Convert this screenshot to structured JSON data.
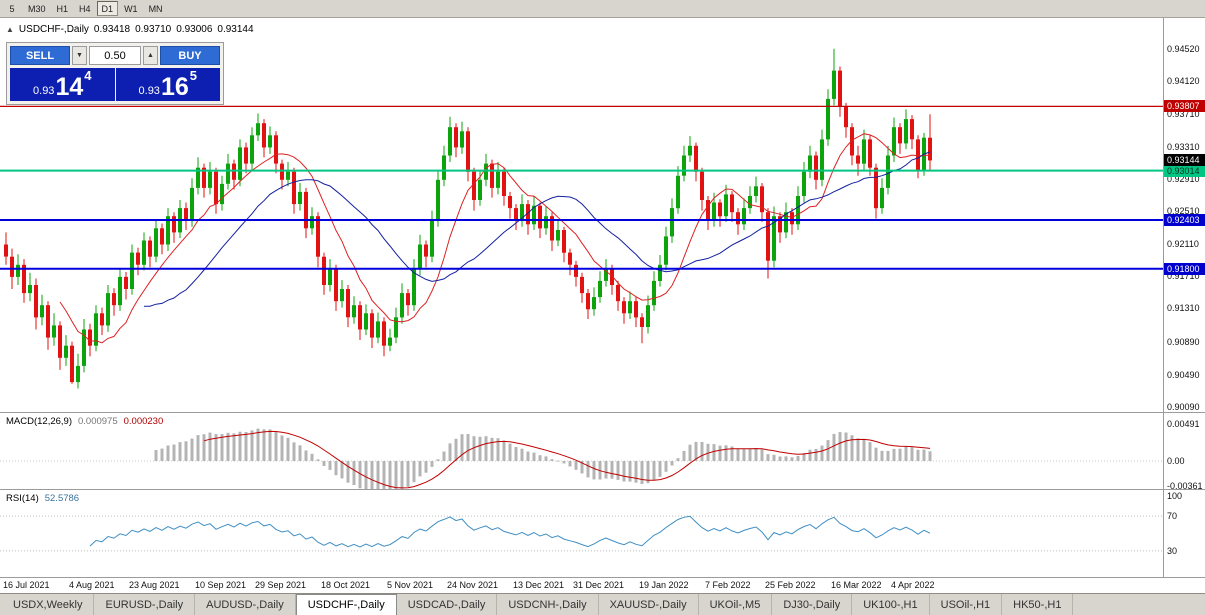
{
  "toolbar": {
    "timeframes": [
      "5",
      "M30",
      "H1",
      "H4",
      "D1",
      "W1",
      "MN"
    ],
    "active": "D1"
  },
  "header": {
    "symbol_period": "USDCHF-,Daily",
    "open": "0.93418",
    "high": "0.93710",
    "low": "0.93006",
    "close": "0.93144"
  },
  "icons": {
    "panel_toggle": "▲",
    "spin_up": "▲",
    "spin_down": "▼"
  },
  "trade_panel": {
    "sell_label": "SELL",
    "buy_label": "BUY",
    "lot_size": "0.50",
    "sell_price_prefix": "0.93",
    "sell_price_main": "14",
    "sell_price_pip": "4",
    "buy_price_prefix": "0.93",
    "buy_price_main": "16",
    "buy_price_pip": "5"
  },
  "tabs": {
    "items": [
      "USDX,Weekly",
      "EURUSD-,Daily",
      "AUDUSD-,Daily",
      "USDCHF-,Daily",
      "USDCAD-,Daily",
      "USDCNH-,Daily",
      "XAUUSD-,Daily",
      "UKOil-,M5",
      "DJ30-,Daily",
      "UK100-,H1",
      "USOil-,H1",
      "HK50-,H1"
    ],
    "active": "USDCHF-,Daily"
  },
  "chart_data": {
    "type": "candlestick",
    "symbol": "USDCHF-",
    "timeframe": "Daily",
    "price_unit": "price = value / 10000",
    "colors": {
      "up": "#0ca30c",
      "down": "#e31212"
    },
    "candles": [
      [
        9210,
        9225,
        9185,
        9195
      ],
      [
        9195,
        9205,
        9155,
        9170
      ],
      [
        9170,
        9198,
        9160,
        9185
      ],
      [
        9185,
        9192,
        9138,
        9150
      ],
      [
        9150,
        9175,
        9140,
        9160
      ],
      [
        9160,
        9168,
        9105,
        9120
      ],
      [
        9120,
        9148,
        9110,
        9135
      ],
      [
        9135,
        9140,
        9080,
        9095
      ],
      [
        9095,
        9125,
        9085,
        9110
      ],
      [
        9110,
        9115,
        9055,
        9070
      ],
      [
        9070,
        9098,
        9060,
        9085
      ],
      [
        9085,
        9090,
        9038,
        9040
      ],
      [
        9040,
        9075,
        9032,
        9060
      ],
      [
        9060,
        9118,
        9052,
        9105
      ],
      [
        9105,
        9112,
        9072,
        9085
      ],
      [
        9085,
        9135,
        9078,
        9125
      ],
      [
        9125,
        9132,
        9098,
        9110
      ],
      [
        9110,
        9160,
        9102,
        9150
      ],
      [
        9150,
        9156,
        9122,
        9135
      ],
      [
        9135,
        9180,
        9128,
        9170
      ],
      [
        9170,
        9176,
        9142,
        9155
      ],
      [
        9155,
        9210,
        9148,
        9200
      ],
      [
        9200,
        9206,
        9172,
        9185
      ],
      [
        9185,
        9225,
        9178,
        9215
      ],
      [
        9215,
        9220,
        9182,
        9195
      ],
      [
        9195,
        9240,
        9188,
        9230
      ],
      [
        9230,
        9236,
        9198,
        9210
      ],
      [
        9210,
        9255,
        9202,
        9245
      ],
      [
        9245,
        9250,
        9212,
        9225
      ],
      [
        9225,
        9265,
        9218,
        9255
      ],
      [
        9255,
        9262,
        9228,
        9240
      ],
      [
        9240,
        9292,
        9232,
        9280
      ],
      [
        9280,
        9318,
        9272,
        9305
      ],
      [
        9305,
        9310,
        9268,
        9280
      ],
      [
        9280,
        9312,
        9272,
        9300
      ],
      [
        9300,
        9305,
        9248,
        9260
      ],
      [
        9260,
        9295,
        9252,
        9285
      ],
      [
        9285,
        9322,
        9278,
        9310
      ],
      [
        9310,
        9315,
        9278,
        9290
      ],
      [
        9290,
        9340,
        9282,
        9330
      ],
      [
        9330,
        9336,
        9298,
        9310
      ],
      [
        9310,
        9355,
        9302,
        9345
      ],
      [
        9345,
        9372,
        9338,
        9360
      ],
      [
        9360,
        9365,
        9318,
        9330
      ],
      [
        9330,
        9356,
        9322,
        9345
      ],
      [
        9345,
        9350,
        9298,
        9310
      ],
      [
        9310,
        9315,
        9278,
        9290
      ],
      [
        9290,
        9312,
        9282,
        9300
      ],
      [
        9300,
        9305,
        9248,
        9260
      ],
      [
        9260,
        9286,
        9252,
        9275
      ],
      [
        9275,
        9280,
        9218,
        9230
      ],
      [
        9230,
        9256,
        9222,
        9245
      ],
      [
        9245,
        9250,
        9182,
        9195
      ],
      [
        9195,
        9200,
        9148,
        9160
      ],
      [
        9160,
        9192,
        9152,
        9180
      ],
      [
        9180,
        9185,
        9128,
        9140
      ],
      [
        9140,
        9166,
        9132,
        9155
      ],
      [
        9155,
        9160,
        9108,
        9120
      ],
      [
        9120,
        9146,
        9112,
        9135
      ],
      [
        9135,
        9140,
        9092,
        9105
      ],
      [
        9105,
        9136,
        9098,
        9125
      ],
      [
        9125,
        9130,
        9082,
        9095
      ],
      [
        9095,
        9126,
        9088,
        9115
      ],
      [
        9115,
        9120,
        9072,
        9085
      ],
      [
        9085,
        9106,
        9078,
        9095
      ],
      [
        9095,
        9132,
        9088,
        9120
      ],
      [
        9120,
        9162,
        9112,
        9150
      ],
      [
        9150,
        9155,
        9122,
        9135
      ],
      [
        9135,
        9192,
        9128,
        9180
      ],
      [
        9180,
        9222,
        9172,
        9210
      ],
      [
        9210,
        9215,
        9182,
        9195
      ],
      [
        9195,
        9252,
        9188,
        9240
      ],
      [
        9240,
        9302,
        9232,
        9290
      ],
      [
        9290,
        9332,
        9282,
        9320
      ],
      [
        9320,
        9368,
        9312,
        9355
      ],
      [
        9355,
        9360,
        9318,
        9330
      ],
      [
        9330,
        9362,
        9322,
        9350
      ],
      [
        9350,
        9355,
        9288,
        9300
      ],
      [
        9300,
        9305,
        9252,
        9265
      ],
      [
        9265,
        9302,
        9258,
        9290
      ],
      [
        9290,
        9322,
        9282,
        9310
      ],
      [
        9310,
        9315,
        9268,
        9280
      ],
      [
        9280,
        9312,
        9272,
        9300
      ],
      [
        9300,
        9305,
        9258,
        9270
      ],
      [
        9270,
        9275,
        9242,
        9255
      ],
      [
        9255,
        9260,
        9228,
        9240
      ],
      [
        9240,
        9272,
        9232,
        9260
      ],
      [
        9260,
        9265,
        9222,
        9235
      ],
      [
        9235,
        9270,
        9228,
        9258
      ],
      [
        9258,
        9262,
        9218,
        9230
      ],
      [
        9230,
        9257,
        9222,
        9245
      ],
      [
        9245,
        9250,
        9202,
        9215
      ],
      [
        9215,
        9240,
        9208,
        9228
      ],
      [
        9228,
        9232,
        9188,
        9200
      ],
      [
        9200,
        9205,
        9172,
        9185
      ],
      [
        9185,
        9190,
        9158,
        9170
      ],
      [
        9170,
        9175,
        9138,
        9150
      ],
      [
        9150,
        9155,
        9118,
        9130
      ],
      [
        9130,
        9157,
        9122,
        9145
      ],
      [
        9145,
        9177,
        9138,
        9165
      ],
      [
        9165,
        9192,
        9158,
        9180
      ],
      [
        9180,
        9185,
        9148,
        9160
      ],
      [
        9160,
        9165,
        9128,
        9140
      ],
      [
        9140,
        9145,
        9112,
        9125
      ],
      [
        9125,
        9152,
        9118,
        9140
      ],
      [
        9140,
        9145,
        9108,
        9120
      ],
      [
        9120,
        9125,
        9088,
        9108
      ],
      [
        9108,
        9147,
        9100,
        9135
      ],
      [
        9135,
        9177,
        9128,
        9165
      ],
      [
        9165,
        9197,
        9158,
        9185
      ],
      [
        9185,
        9232,
        9178,
        9220
      ],
      [
        9220,
        9267,
        9212,
        9255
      ],
      [
        9255,
        9307,
        9248,
        9295
      ],
      [
        9295,
        9332,
        9288,
        9320
      ],
      [
        9320,
        9344,
        9312,
        9332
      ],
      [
        9332,
        9336,
        9288,
        9300
      ],
      [
        9300,
        9305,
        9252,
        9265
      ],
      [
        9265,
        9270,
        9228,
        9240
      ],
      [
        9240,
        9274,
        9232,
        9262
      ],
      [
        9262,
        9266,
        9232,
        9245
      ],
      [
        9245,
        9284,
        9238,
        9272
      ],
      [
        9272,
        9276,
        9238,
        9250
      ],
      [
        9250,
        9255,
        9222,
        9235
      ],
      [
        9235,
        9267,
        9228,
        9255
      ],
      [
        9255,
        9282,
        9248,
        9270
      ],
      [
        9270,
        9294,
        9262,
        9282
      ],
      [
        9282,
        9286,
        9238,
        9250
      ],
      [
        9250,
        9255,
        9168,
        9190
      ],
      [
        9190,
        9257,
        9182,
        9245
      ],
      [
        9245,
        9250,
        9212,
        9225
      ],
      [
        9225,
        9262,
        9218,
        9250
      ],
      [
        9250,
        9255,
        9222,
        9235
      ],
      [
        9235,
        9282,
        9228,
        9270
      ],
      [
        9270,
        9312,
        9262,
        9300
      ],
      [
        9300,
        9332,
        9292,
        9320
      ],
      [
        9320,
        9325,
        9278,
        9290
      ],
      [
        9290,
        9352,
        9282,
        9340
      ],
      [
        9340,
        9402,
        9332,
        9390
      ],
      [
        9390,
        9452,
        9382,
        9425
      ],
      [
        9425,
        9430,
        9368,
        9380
      ],
      [
        9380,
        9385,
        9342,
        9355
      ],
      [
        9355,
        9360,
        9308,
        9320
      ],
      [
        9320,
        9332,
        9295,
        9310
      ],
      [
        9310,
        9352,
        9302,
        9340
      ],
      [
        9340,
        9345,
        9295,
        9305
      ],
      [
        9305,
        9310,
        9242,
        9255
      ],
      [
        9255,
        9292,
        9248,
        9280
      ],
      [
        9280,
        9332,
        9272,
        9320
      ],
      [
        9320,
        9367,
        9312,
        9355
      ],
      [
        9355,
        9360,
        9322,
        9335
      ],
      [
        9335,
        9377,
        9328,
        9365
      ],
      [
        9365,
        9370,
        9328,
        9340
      ],
      [
        9340,
        9345,
        9292,
        9302
      ],
      [
        9302,
        9348,
        9295,
        9342
      ],
      [
        9342,
        9371,
        9301,
        9314
      ]
    ],
    "x_labels": [
      {
        "label": "16 Jul 2021",
        "idx": 0
      },
      {
        "label": "4 Aug 2021",
        "idx": 11
      },
      {
        "label": "23 Aug 2021",
        "idx": 21
      },
      {
        "label": "10 Sep 2021",
        "idx": 32
      },
      {
        "label": "29 Sep 2021",
        "idx": 42
      },
      {
        "label": "18 Oct 2021",
        "idx": 53
      },
      {
        "label": "5 Nov 2021",
        "idx": 64
      },
      {
        "label": "24 Nov 2021",
        "idx": 74
      },
      {
        "label": "13 Dec 2021",
        "idx": 85
      },
      {
        "label": "31 Dec 2021",
        "idx": 95
      },
      {
        "label": "19 Jan 2022",
        "idx": 106
      },
      {
        "label": "7 Feb 2022",
        "idx": 117
      },
      {
        "label": "25 Feb 2022",
        "idx": 127
      },
      {
        "label": "16 Mar 2022",
        "idx": 138
      },
      {
        "label": "4 Apr 2022",
        "idx": 148
      }
    ],
    "y_ticks": [
      "0.94520",
      "0.94120",
      "0.93710",
      "0.93310",
      "0.92910",
      "0.92510",
      "0.92110",
      "0.91710",
      "0.91310",
      "0.90890",
      "0.90490",
      "0.90090"
    ],
    "h_lines": [
      {
        "price": 0.93807,
        "label": "0.93807",
        "color": "#c00000",
        "width": 1.3,
        "badge_bg": "#c00000",
        "badge_fg": "#ffffff"
      },
      {
        "price": 0.93014,
        "label": "0.93014",
        "color": "#00c583",
        "width": 2,
        "badge_bg": "#00c583",
        "badge_fg": "#00331f"
      },
      {
        "price": 0.92403,
        "label": "0.92403",
        "color": "#0000dd",
        "width": 2,
        "badge_bg": "#0000cc",
        "badge_fg": "#ffffff"
      },
      {
        "price": 0.918,
        "label": "0.91800",
        "color": "#0000dd",
        "width": 2,
        "badge_bg": "#0000cc",
        "badge_fg": "#ffffff"
      }
    ],
    "last_price": {
      "label": "0.93144",
      "badge_bg": "#000000",
      "badge_fg": "#ffffff"
    },
    "moving_averages": [
      {
        "period": 10,
        "color": "#dd2222"
      },
      {
        "period": 24,
        "color": "#1420a0"
      }
    ],
    "indicators": {
      "macd": {
        "label": "MACD(12,26,9)",
        "value_main": "0.000975",
        "value_signal": "0.000230",
        "y_ticks": [
          "0.00491",
          "0.00",
          "-0.00361"
        ],
        "histogram_color": "#b4b4b4",
        "signal_color": "#c00000"
      },
      "rsi": {
        "label": "RSI(14)",
        "value": "52.5786",
        "y_ticks": [
          "100",
          "70",
          "30"
        ],
        "levels": [
          70,
          30
        ],
        "line_color": "#3f8fc4"
      }
    }
  }
}
